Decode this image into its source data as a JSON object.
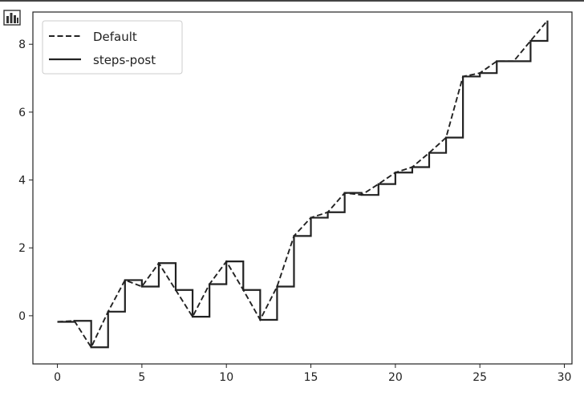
{
  "toolbar": {
    "icon": "bar-chart-icon"
  },
  "chart_data": {
    "type": "line",
    "title": "",
    "xlabel": "",
    "ylabel": "",
    "xlim": [
      -1.45,
      30.45
    ],
    "ylim": [
      -1.42,
      8.95
    ],
    "x_ticks": [
      0,
      5,
      10,
      15,
      20,
      25,
      30
    ],
    "y_ticks": [
      0,
      2,
      4,
      6,
      8
    ],
    "grid": false,
    "legend": {
      "placement": "top-left",
      "entries": [
        "Default",
        "steps-post"
      ]
    },
    "x": [
      0,
      1,
      2,
      3,
      4,
      5,
      6,
      7,
      8,
      9,
      10,
      11,
      12,
      13,
      14,
      15,
      16,
      17,
      18,
      19,
      20,
      21,
      22,
      23,
      24,
      25,
      26,
      27,
      28,
      29
    ],
    "series": [
      {
        "name": "Default",
        "style": "dashed",
        "color": "#222222",
        "values": [
          -0.18,
          -0.15,
          -0.93,
          0.12,
          1.05,
          0.86,
          1.55,
          0.76,
          -0.03,
          0.93,
          1.6,
          0.76,
          -0.12,
          0.86,
          2.35,
          2.89,
          3.05,
          3.62,
          3.56,
          3.88,
          4.22,
          4.38,
          4.8,
          5.25,
          7.05,
          7.15,
          7.5,
          7.5,
          8.1,
          8.7
        ]
      },
      {
        "name": "steps-post",
        "style": "solid",
        "drawstyle": "steps-post",
        "color": "#222222",
        "values": [
          -0.18,
          -0.15,
          -0.93,
          0.12,
          1.05,
          0.86,
          1.55,
          0.76,
          -0.03,
          0.93,
          1.6,
          0.76,
          -0.12,
          0.86,
          2.35,
          2.89,
          3.05,
          3.62,
          3.56,
          3.88,
          4.22,
          4.38,
          4.8,
          5.25,
          7.05,
          7.15,
          7.5,
          7.5,
          8.1,
          8.7
        ]
      }
    ]
  }
}
